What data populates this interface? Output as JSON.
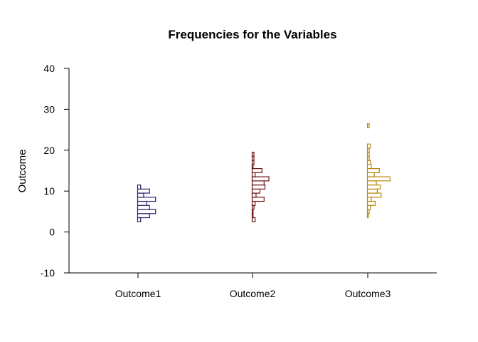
{
  "chart_data": {
    "type": "histogram-strip",
    "title": "Frequencies for the Variables",
    "ylabel": "Outcome",
    "xlabel": "",
    "ylim": [
      -10,
      40
    ],
    "yticks": [
      -10,
      0,
      10,
      20,
      30,
      40
    ],
    "categories": [
      "Outcome1",
      "Outcome2",
      "Outcome3"
    ],
    "bin_width": 1,
    "grid": false,
    "legend": "none",
    "series": [
      {
        "category": "Outcome1",
        "color": "#2b1f6e",
        "bins": [
          {
            "lo": 2.5,
            "hi": 3.5,
            "count": 1
          },
          {
            "lo": 3.5,
            "hi": 4.5,
            "count": 4
          },
          {
            "lo": 4.5,
            "hi": 5.5,
            "count": 6
          },
          {
            "lo": 5.5,
            "hi": 6.5,
            "count": 4
          },
          {
            "lo": 6.5,
            "hi": 7.5,
            "count": 3
          },
          {
            "lo": 7.5,
            "hi": 8.5,
            "count": 6
          },
          {
            "lo": 8.5,
            "hi": 9.5,
            "count": 2
          },
          {
            "lo": 9.5,
            "hi": 10.5,
            "count": 4
          },
          {
            "lo": 10.5,
            "hi": 11.5,
            "count": 1
          }
        ]
      },
      {
        "category": "Outcome2",
        "color": "#6e1414",
        "bins": [
          {
            "lo": 2.5,
            "hi": 3.5,
            "count": 1
          },
          {
            "lo": 3.5,
            "hi": 4.5,
            "count": 0.3
          },
          {
            "lo": 4.5,
            "hi": 5.5,
            "count": 0.3
          },
          {
            "lo": 5.5,
            "hi": 6.5,
            "count": 0.6
          },
          {
            "lo": 6.5,
            "hi": 7.5,
            "count": 1
          },
          {
            "lo": 7.5,
            "hi": 8.5,
            "count": 4
          },
          {
            "lo": 8.5,
            "hi": 9.5,
            "count": 1.3
          },
          {
            "lo": 9.5,
            "hi": 10.5,
            "count": 2.6
          },
          {
            "lo": 10.5,
            "hi": 11.5,
            "count": 4.3
          },
          {
            "lo": 11.5,
            "hi": 12.5,
            "count": 4
          },
          {
            "lo": 12.5,
            "hi": 13.5,
            "count": 5.6
          },
          {
            "lo": 13.5,
            "hi": 14.5,
            "count": 1
          },
          {
            "lo": 14.5,
            "hi": 15.5,
            "count": 3.3
          },
          {
            "lo": 15.5,
            "hi": 16.5,
            "count": 0.3
          },
          {
            "lo": 16.5,
            "hi": 17.5,
            "count": 0.6
          },
          {
            "lo": 17.5,
            "hi": 18.5,
            "count": 0.6
          },
          {
            "lo": 18.5,
            "hi": 19.5,
            "count": 0.6
          }
        ]
      },
      {
        "category": "Outcome3",
        "color": "#b8860b",
        "bins": [
          {
            "lo": 3.5,
            "hi": 4.5,
            "count": 0.3
          },
          {
            "lo": 4.5,
            "hi": 5.5,
            "count": 0.6
          },
          {
            "lo": 5.5,
            "hi": 6.5,
            "count": 1
          },
          {
            "lo": 6.5,
            "hi": 7.5,
            "count": 2.6
          },
          {
            "lo": 7.5,
            "hi": 8.5,
            "count": 1.3
          },
          {
            "lo": 8.5,
            "hi": 9.5,
            "count": 4.6
          },
          {
            "lo": 9.5,
            "hi": 10.5,
            "count": 3.3
          },
          {
            "lo": 10.5,
            "hi": 11.5,
            "count": 4.3
          },
          {
            "lo": 11.5,
            "hi": 12.5,
            "count": 3
          },
          {
            "lo": 12.5,
            "hi": 13.5,
            "count": 7.6
          },
          {
            "lo": 13.5,
            "hi": 14.5,
            "count": 2.3
          },
          {
            "lo": 14.5,
            "hi": 15.5,
            "count": 4
          },
          {
            "lo": 15.5,
            "hi": 16.5,
            "count": 1.3
          },
          {
            "lo": 16.5,
            "hi": 17.5,
            "count": 1
          },
          {
            "lo": 17.5,
            "hi": 18.5,
            "count": 0.6
          },
          {
            "lo": 18.5,
            "hi": 19.5,
            "count": 0.6
          },
          {
            "lo": 19.5,
            "hi": 20.5,
            "count": 0.6
          },
          {
            "lo": 20.5,
            "hi": 21.5,
            "count": 1
          },
          {
            "lo": 25.5,
            "hi": 26.5,
            "count": 0.6
          }
        ]
      }
    ]
  }
}
